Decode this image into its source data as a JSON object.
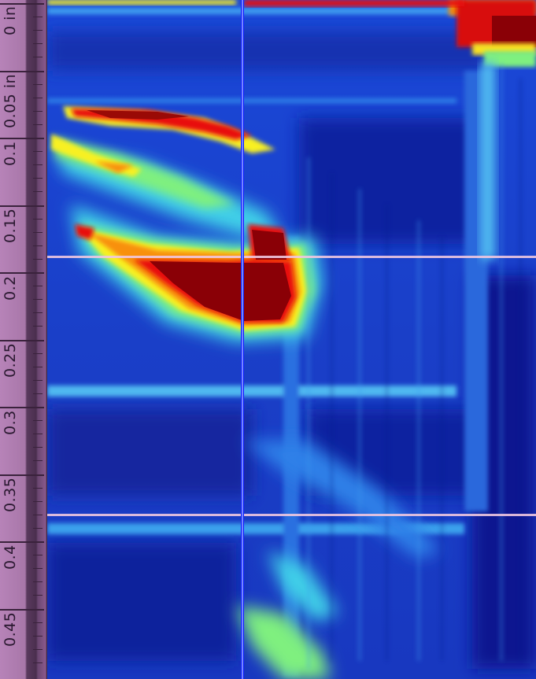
{
  "ruler": {
    "ticks": [
      {
        "label": "0 in",
        "value": 0
      },
      {
        "label": "0.05 in",
        "value": 0.05
      },
      {
        "label": "0.1",
        "value": 0.1
      },
      {
        "label": "0.15",
        "value": 0.15
      },
      {
        "label": "0.2",
        "value": 0.2
      },
      {
        "label": "0.25",
        "value": 0.25
      },
      {
        "label": "0.3",
        "value": 0.3
      },
      {
        "label": "0.35",
        "value": 0.35
      },
      {
        "label": "0.4",
        "value": 0.4
      },
      {
        "label": "0.45",
        "value": 0.45
      }
    ]
  },
  "colormap": {
    "background": "#1a3fc8",
    "low": "#0a1a8a",
    "mid": "#1f7fe0",
    "cyan": "#3fd0e8",
    "green": "#7ff07f",
    "yellow": "#f8f020",
    "orange": "#f89010",
    "red": "#e81008",
    "max": "#8a0006"
  },
  "cursor": {
    "color": "#1020ff",
    "guide_color": "#f0c8e0"
  }
}
